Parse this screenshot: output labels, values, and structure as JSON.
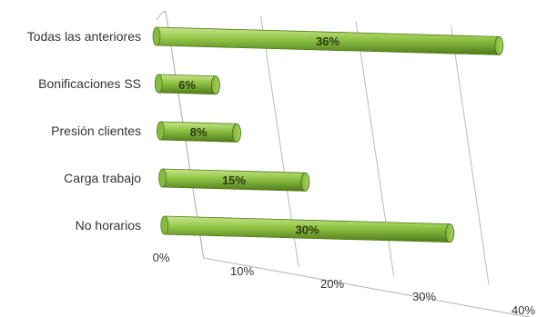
{
  "chart_data": {
    "type": "bar",
    "orientation": "horizontal",
    "style": "3d-cylinder",
    "categories": [
      "Todas las anteriores",
      "Bonificaciones SS",
      "Presión clientes",
      "Carga trabajo",
      "No horarios"
    ],
    "values": [
      36,
      6,
      8,
      15,
      30
    ],
    "value_labels": [
      "36%",
      "6%",
      "8%",
      "15%",
      "30%"
    ],
    "x_ticks": [
      0,
      10,
      20,
      30,
      40
    ],
    "x_tick_labels": [
      "0%",
      "10%",
      "20%",
      "30%",
      "40%"
    ],
    "xlim": [
      0,
      40
    ],
    "grid": true,
    "legend": "none",
    "title": "",
    "xlabel": "",
    "ylabel": "",
    "colors": {
      "bar_fill": "#94c748",
      "bar_dark": "#4f7a19",
      "bar_light": "#c9e58f",
      "grid": "#b3b3b3"
    }
  }
}
